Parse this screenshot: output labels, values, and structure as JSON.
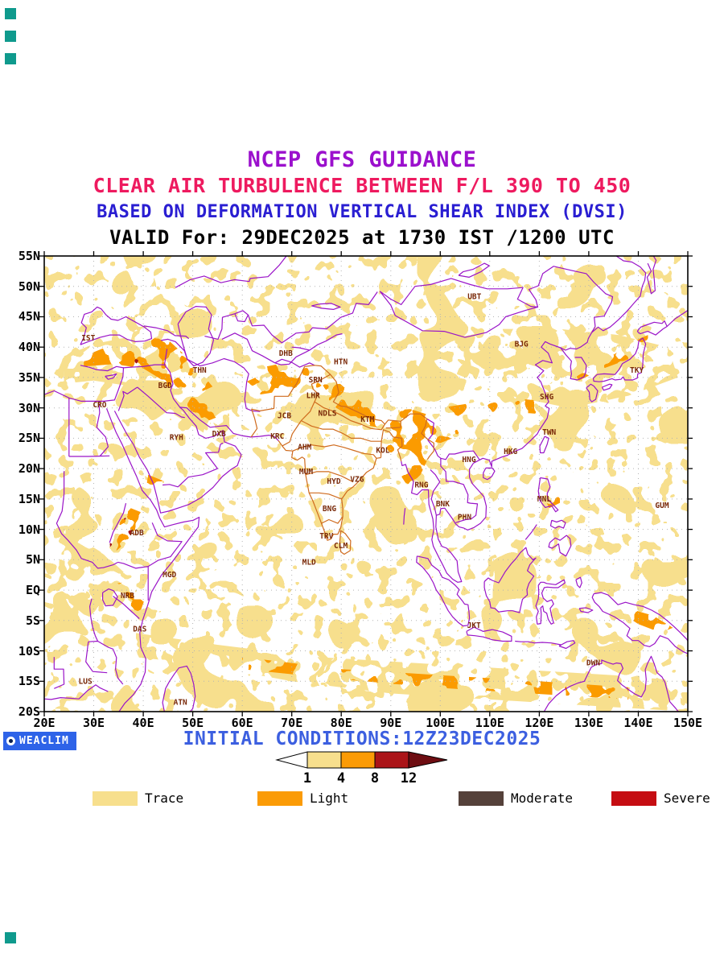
{
  "corner_marker_color": "#0f9a8d",
  "titles": [
    {
      "text": "NCEP GFS GUIDANCE",
      "color": "#9b10cd"
    },
    {
      "text": "CLEAR AIR TURBULENCE BETWEEN F/L 390 TO 450",
      "color": "#ee1a5f"
    },
    {
      "text": "BASED ON DEFORMATION VERTICAL SHEAR INDEX (DVSI)",
      "color": "#2a1ed2"
    },
    {
      "text": "VALID For: 29DEC2025 at 1730 IST /1200 UTC",
      "color": "#000000"
    }
  ],
  "map": {
    "lat_ticks": [
      "55N",
      "50N",
      "45N",
      "40N",
      "35N",
      "30N",
      "25N",
      "20N",
      "15N",
      "10N",
      "5N",
      "EQ",
      "5S",
      "10S",
      "15S",
      "20S"
    ],
    "lon_ticks": [
      "20E",
      "30E",
      "40E",
      "50E",
      "60E",
      "70E",
      "80E",
      "90E",
      "100E",
      "110E",
      "120E",
      "130E",
      "140E",
      "150E"
    ],
    "boundary_color_international": "#9a14c8",
    "boundary_color_india_region": "#cf6b1e",
    "station_label_color": "#7a2a0a",
    "shading": {
      "trace": "#f7df8d",
      "light": "#fb9b06",
      "moderate": "#a31313"
    },
    "stations": [
      {
        "code": "IST",
        "lon": 28.9,
        "lat": 41.1
      },
      {
        "code": "THN",
        "lon": 51.4,
        "lat": 35.8
      },
      {
        "code": "BGD",
        "lon": 44.4,
        "lat": 33.3
      },
      {
        "code": "CRO",
        "lon": 31.2,
        "lat": 30.1
      },
      {
        "code": "RYH",
        "lon": 46.7,
        "lat": 24.7
      },
      {
        "code": "DXB",
        "lon": 55.3,
        "lat": 25.3
      },
      {
        "code": "ADB",
        "lon": 38.7,
        "lat": 9.0
      },
      {
        "code": "MGD",
        "lon": 45.3,
        "lat": 2.1
      },
      {
        "code": "NRB",
        "lon": 36.8,
        "lat": -1.3
      },
      {
        "code": "DAS",
        "lon": 39.3,
        "lat": -6.8
      },
      {
        "code": "LUS",
        "lon": 28.3,
        "lat": -15.4
      },
      {
        "code": "ATN",
        "lon": 47.5,
        "lat": -18.9
      },
      {
        "code": "DHB",
        "lon": 68.8,
        "lat": 38.6
      },
      {
        "code": "HTN",
        "lon": 79.9,
        "lat": 37.2
      },
      {
        "code": "SRN",
        "lon": 74.8,
        "lat": 34.2
      },
      {
        "code": "LHR",
        "lon": 74.3,
        "lat": 31.6
      },
      {
        "code": "JCB",
        "lon": 68.5,
        "lat": 28.3
      },
      {
        "code": "NDLS",
        "lon": 77.2,
        "lat": 28.7
      },
      {
        "code": "KRC",
        "lon": 67.1,
        "lat": 24.9
      },
      {
        "code": "AHM",
        "lon": 72.6,
        "lat": 23.1
      },
      {
        "code": "MUM",
        "lon": 72.9,
        "lat": 19.1
      },
      {
        "code": "HYD",
        "lon": 78.5,
        "lat": 17.5
      },
      {
        "code": "VZG",
        "lon": 83.2,
        "lat": 17.8
      },
      {
        "code": "BNG",
        "lon": 77.6,
        "lat": 13.0
      },
      {
        "code": "TRV",
        "lon": 77.0,
        "lat": 8.5
      },
      {
        "code": "CLM",
        "lon": 79.9,
        "lat": 6.9
      },
      {
        "code": "MLD",
        "lon": 73.5,
        "lat": 4.2
      },
      {
        "code": "KTM",
        "lon": 85.3,
        "lat": 27.7
      },
      {
        "code": "KOL",
        "lon": 88.4,
        "lat": 22.6
      },
      {
        "code": "RNG",
        "lon": 96.2,
        "lat": 16.9
      },
      {
        "code": "BNK",
        "lon": 100.5,
        "lat": 13.8
      },
      {
        "code": "PHN",
        "lon": 104.9,
        "lat": 11.6
      },
      {
        "code": "HNG",
        "lon": 105.8,
        "lat": 21.1
      },
      {
        "code": "HKG",
        "lon": 114.2,
        "lat": 22.4
      },
      {
        "code": "TWN",
        "lon": 122.0,
        "lat": 25.6
      },
      {
        "code": "SHG",
        "lon": 121.5,
        "lat": 31.4
      },
      {
        "code": "TKY",
        "lon": 139.7,
        "lat": 35.8
      },
      {
        "code": "BJG",
        "lon": 116.4,
        "lat": 40.1
      },
      {
        "code": "UBT",
        "lon": 106.9,
        "lat": 47.9
      },
      {
        "code": "MNL",
        "lon": 121.0,
        "lat": 14.6
      },
      {
        "code": "GUM",
        "lon": 144.8,
        "lat": 13.5
      },
      {
        "code": "JKT",
        "lon": 106.8,
        "lat": -6.2
      },
      {
        "code": "DWN",
        "lon": 130.9,
        "lat": -12.4
      }
    ]
  },
  "footer": {
    "brand": "WEACLIM",
    "brand_bg": "#2e63e8",
    "initial_conditions": "INITIAL CONDITIONS:12Z23DEC2025",
    "initial_conditions_color": "#3c5fe0",
    "scale": {
      "ticks": [
        "1",
        "4",
        "8",
        "12"
      ],
      "segment_colors": [
        "#f7df8d",
        "#fb9b06",
        "#ab1418",
        "#6e0d12"
      ]
    },
    "legend": [
      {
        "label": "Trace",
        "color": "#f7df8d"
      },
      {
        "label": "Light",
        "color": "#fb9b06"
      },
      {
        "label": "Moderate",
        "color": "#55413a"
      },
      {
        "label": "Severe",
        "color": "#c50d12"
      }
    ]
  }
}
